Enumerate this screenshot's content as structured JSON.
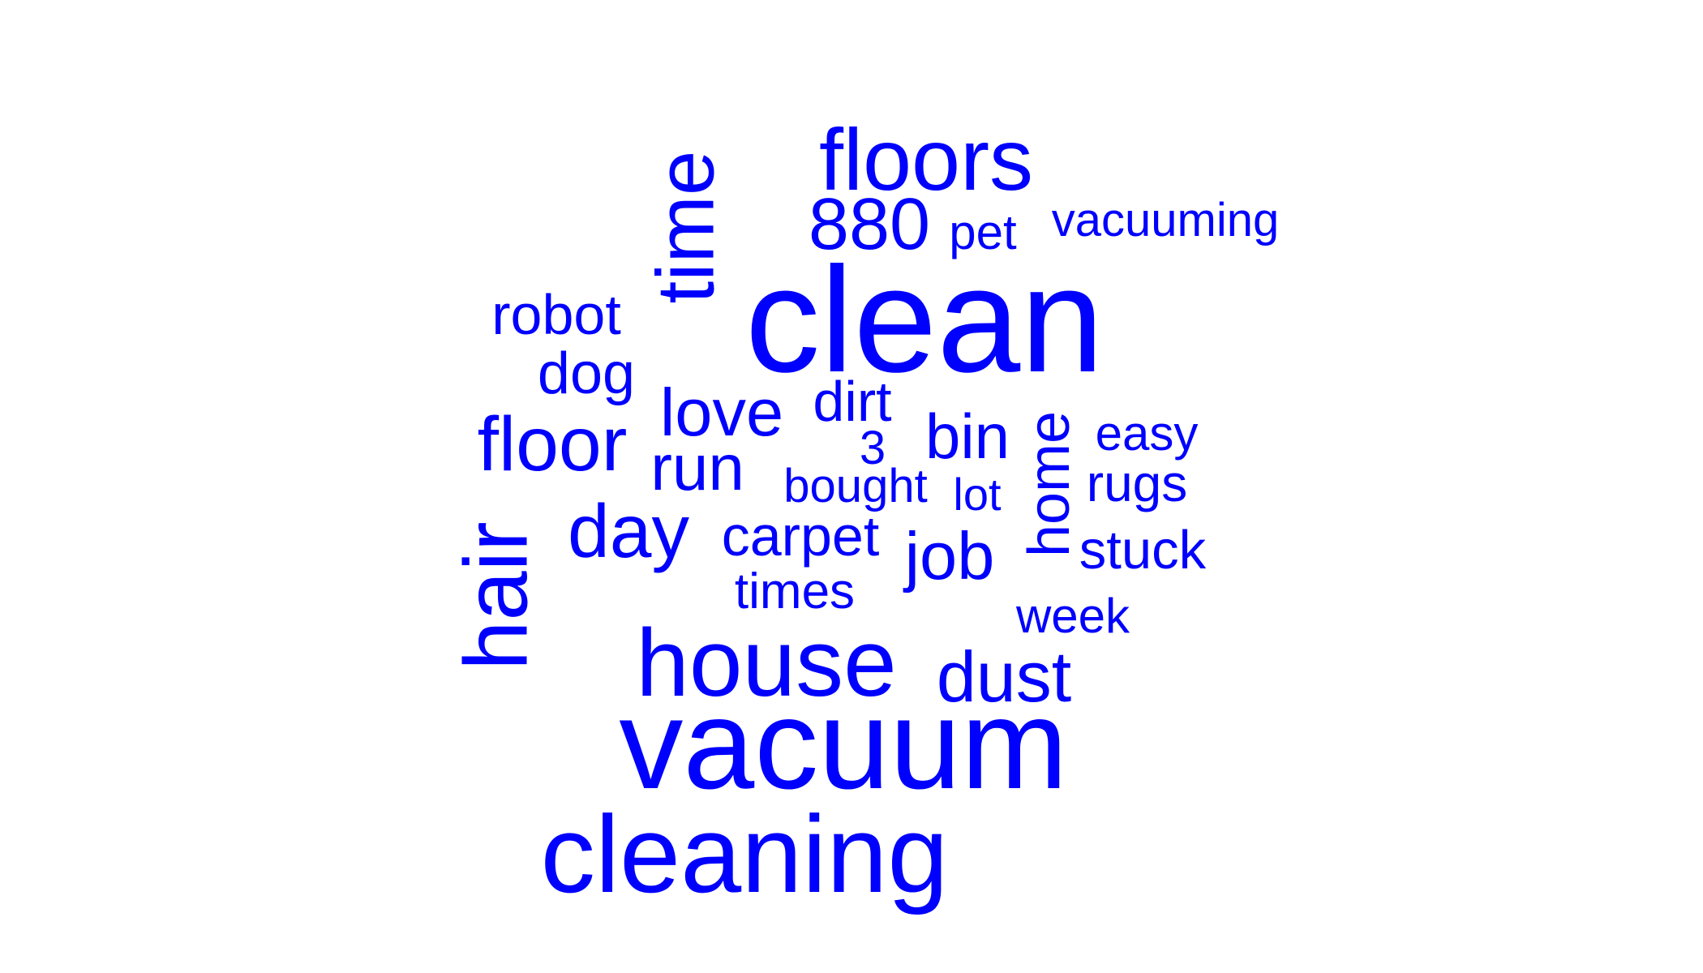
{
  "cloud": {
    "text_color": "#0000FF",
    "background_color": "#FFFFFF",
    "words": [
      {
        "text": "clean",
        "rotated": false
      },
      {
        "text": "vacuum",
        "rotated": false
      },
      {
        "text": "cleaning",
        "rotated": false
      },
      {
        "text": "house",
        "rotated": false
      },
      {
        "text": "floors",
        "rotated": false
      },
      {
        "text": "hair",
        "rotated": true
      },
      {
        "text": "time",
        "rotated": true
      },
      {
        "text": "floor",
        "rotated": false
      },
      {
        "text": "880",
        "rotated": false
      },
      {
        "text": "day",
        "rotated": false
      },
      {
        "text": "dust",
        "rotated": false
      },
      {
        "text": "love",
        "rotated": false
      },
      {
        "text": "job",
        "rotated": false
      },
      {
        "text": "run",
        "rotated": false
      },
      {
        "text": "home",
        "rotated": true
      },
      {
        "text": "bin",
        "rotated": false
      },
      {
        "text": "carpet",
        "rotated": false
      },
      {
        "text": "dog",
        "rotated": false
      },
      {
        "text": "robot",
        "rotated": false
      },
      {
        "text": "dirt",
        "rotated": false
      },
      {
        "text": "stuck",
        "rotated": false
      },
      {
        "text": "rugs",
        "rotated": false
      },
      {
        "text": "times",
        "rotated": false
      },
      {
        "text": "vacuuming",
        "rotated": false
      },
      {
        "text": "easy",
        "rotated": false
      },
      {
        "text": "pet",
        "rotated": false
      },
      {
        "text": "week",
        "rotated": false
      },
      {
        "text": "bought",
        "rotated": false
      },
      {
        "text": "lot",
        "rotated": false
      },
      {
        "text": "3",
        "rotated": false
      }
    ]
  }
}
